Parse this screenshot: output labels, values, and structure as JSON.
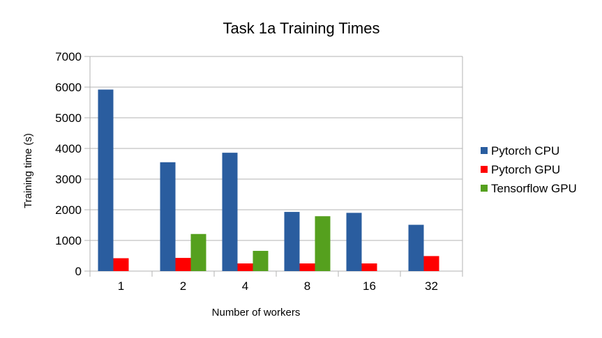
{
  "chart_data": {
    "type": "bar",
    "title": "Task 1a Training Times",
    "xlabel": "Number of workers",
    "ylabel": "Training time (s)",
    "categories": [
      "1",
      "2",
      "4",
      "8",
      "16",
      "32"
    ],
    "ylim": [
      0,
      7000
    ],
    "yticks": [
      0,
      1000,
      2000,
      3000,
      4000,
      5000,
      6000,
      7000
    ],
    "grid": "horizontal",
    "legend_position": "right",
    "series": [
      {
        "name": "Pytorch CPU",
        "color": "#2a5d9f",
        "values": [
          5920,
          3550,
          3860,
          1930,
          1900,
          1510
        ]
      },
      {
        "name": "Pytorch GPU",
        "color": "#ff0000",
        "values": [
          420,
          430,
          250,
          250,
          250,
          490
        ]
      },
      {
        "name": "Tensorflow GPU",
        "color": "#55a01e",
        "values": [
          0,
          1210,
          660,
          1790,
          0,
          0
        ]
      }
    ]
  }
}
